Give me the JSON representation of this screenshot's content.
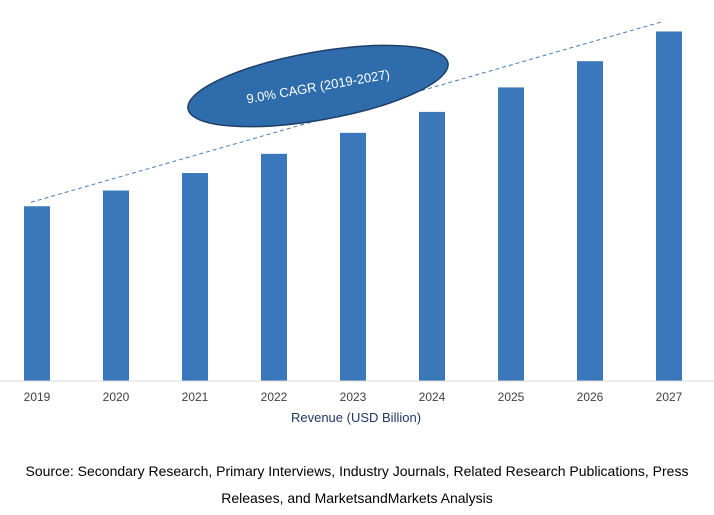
{
  "chart_data": {
    "type": "bar",
    "categories": [
      "2019",
      "2020",
      "2021",
      "2022",
      "2023",
      "2024",
      "2025",
      "2026",
      "2027"
    ],
    "values": [
      1.0,
      1.09,
      1.19,
      1.3,
      1.42,
      1.54,
      1.68,
      1.83,
      2.0
    ],
    "xlabel": "Revenue (USD Billion)",
    "ylim": [
      0,
      2.02
    ],
    "grid": false,
    "bar_color": "#3a78bb",
    "annotation": "9.0% CAGR (2019-2027)",
    "annotation_color": "#2e6cab",
    "trendline_color": "#4a7eb5"
  },
  "source": {
    "line1": "Source: Secondary Research, Primary Interviews, Industry Journals, Related Research Publications, Press",
    "line2": "Releases, and MarketsandMarkets Analysis"
  }
}
